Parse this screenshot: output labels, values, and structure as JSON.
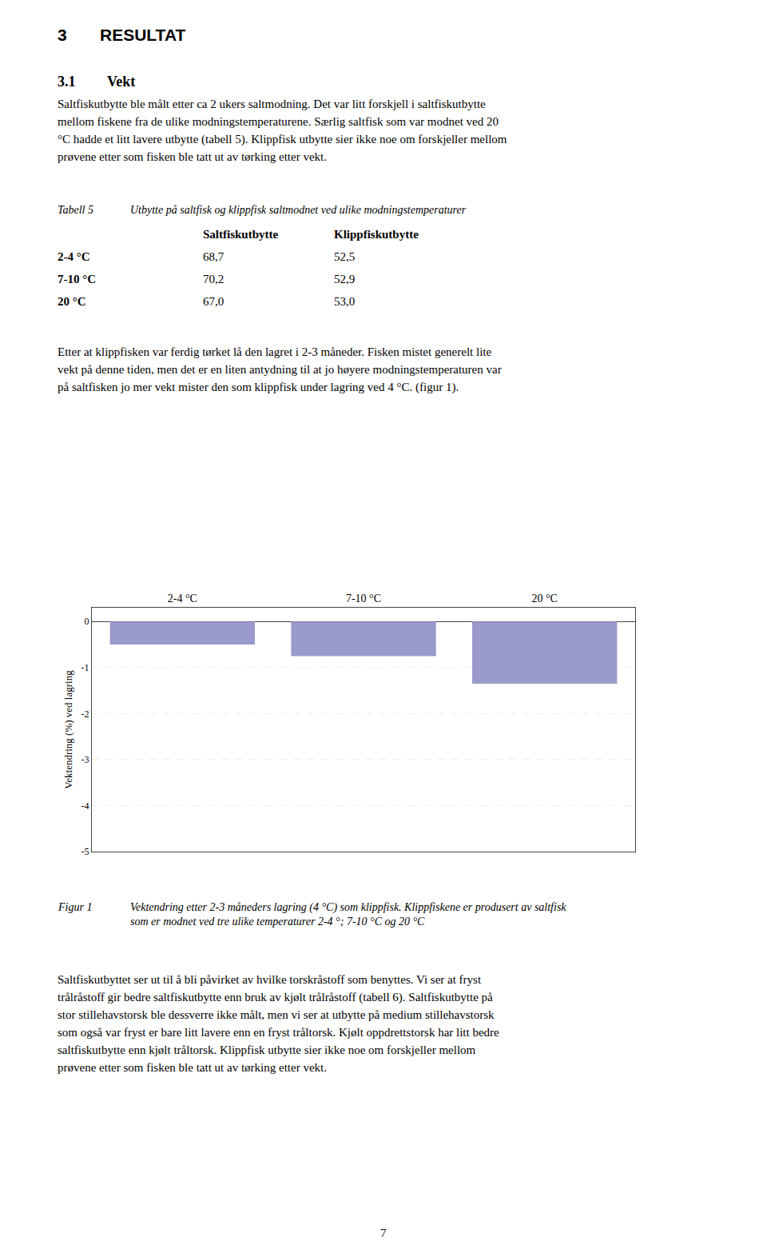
{
  "chart_data": {
    "type": "bar",
    "categories": [
      "2-4 °C",
      "7-10 °C",
      "20 °C"
    ],
    "values": [
      -0.5,
      -0.75,
      -1.35
    ],
    "color": "#9999CC",
    "ylabel": "Vektendring (%) ved lagring",
    "ylim": [
      -5.0,
      0.3
    ],
    "yticks": [
      0,
      -1,
      -2,
      -3,
      -4,
      -5
    ],
    "grid": true,
    "annotations": [
      [
        "3",
        "RESULTAT"
      ],
      [
        "3.1",
        "Vekt"
      ],
      "Saltfiskutbytte ble målt etter ca 2 ukers saltmodning. Det var litt forskjell i saltfiskutbytte",
      "mellom fiskene fra de ulike modningstemperaturene. Særlig saltfisk som var modnet ved 20",
      "°C hadde et litt lavere utbytte (tabell 5). Klippfisk utbytte sier ikke noe om forskjeller mellom",
      "prøvene etter som fisken ble tatt ut av tørking etter vekt.",
      [
        "Tabell 5",
        "Utbytte på saltfisk og klippfisk saltmodnet ved ulike modningstemperaturer"
      ],
      [
        "Saltfiskutbytte",
        "Klippfiskutbytte"
      ],
      [
        "2-4 °C",
        "68,7",
        "52,5"
      ],
      [
        "7-10 °C",
        "70,2",
        "52,9"
      ],
      [
        "20 °C",
        "67,0",
        "53,0"
      ],
      "Etter at klippfisken var ferdig tørket lå den lagret i 2-3 måneder. Fisken mistet generelt lite",
      "vekt på denne tiden, men det er en liten antydning til at jo høyere modningstemperaturen var",
      "på saltfisken jo mer vekt mister den som klippfisk under lagring ved 4 °C. (figur 1).",
      [
        "Figur 1",
        "Vektendring etter 2-3 måneders lagring (4 °C) som klippfisk. Klippfiskene er produsert av saltfisk"
      ],
      "som er modnet ved tre ulike temperaturer 2-4 °; 7-10 °C og 20 °C",
      "Saltfiskutbyttet ser ut til å bli påvirket av hvilke torskråstoff som benyttes. Vi ser at fryst",
      "trålråstoff gir bedre saltfiskutbytte enn bruk av kjølt trålråstoff (tabell 6). Saltfiskutbytte på",
      "stor stillehavstorsk ble dessverre ikke målt, men vi ser at utbytte på medium stillehavstorsk",
      "som også var fryst er bare litt lavere enn en fryst tråltorsk. Kjølt oppdrettstorsk har litt bedre",
      "saltfiskutbytte enn kjølt tråltorsk. Klippfisk utbytte sier ikke noe om forskjeller mellom",
      "prøvene etter som fisken ble tatt ut av tørking etter vekt.",
      "7"
    ]
  }
}
